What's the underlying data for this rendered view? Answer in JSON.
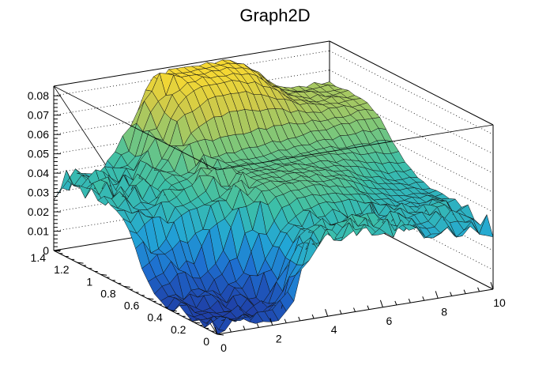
{
  "chart_data": {
    "type": "surface",
    "title": "Graph2D",
    "xlabel": "",
    "ylabel": "",
    "zlabel": "",
    "xlim": [
      0,
      10
    ],
    "ylim": [
      0,
      1.4
    ],
    "zlim": [
      0,
      0.085
    ],
    "x_ticks": [
      "0",
      "2",
      "4",
      "6",
      "8",
      "10"
    ],
    "y_ticks": [
      "0",
      "0.2",
      "0.4",
      "0.6",
      "0.8",
      "1",
      "1.2",
      "1.4"
    ],
    "z_ticks": [
      "0",
      "0.01",
      "0.02",
      "0.03",
      "0.04",
      "0.05",
      "0.06",
      "0.07",
      "0.08"
    ],
    "colormap": "viridis-like (blue → green → yellow)",
    "colors": [
      "#1f3fa6",
      "#1e6fd0",
      "#22a6d6",
      "#3cbfa8",
      "#7cc77a",
      "#c7c84e",
      "#f6d832"
    ],
    "grid": true,
    "grid_nx": 36,
    "grid_ny": 26,
    "surface_points": [
      {
        "x": 0,
        "y": 1.4,
        "z": 0.03
      },
      {
        "x": 0.3,
        "y": 1.3,
        "z": 0.041
      },
      {
        "x": 0,
        "y": 0,
        "z": 0.003
      },
      {
        "x": 1.3,
        "y": 0.2,
        "z": 0.0
      },
      {
        "x": 5,
        "y": 1.4,
        "z": 0.084
      },
      {
        "x": 10,
        "y": 1.4,
        "z": 0.064
      },
      {
        "x": 10,
        "y": 0.3,
        "z": 0.036
      },
      {
        "x": 10,
        "y": 0,
        "z": 0.032
      },
      {
        "x": 5,
        "y": 0,
        "z": 0.04
      },
      {
        "x": 5,
        "y": 0.7,
        "z": 0.05
      }
    ]
  }
}
